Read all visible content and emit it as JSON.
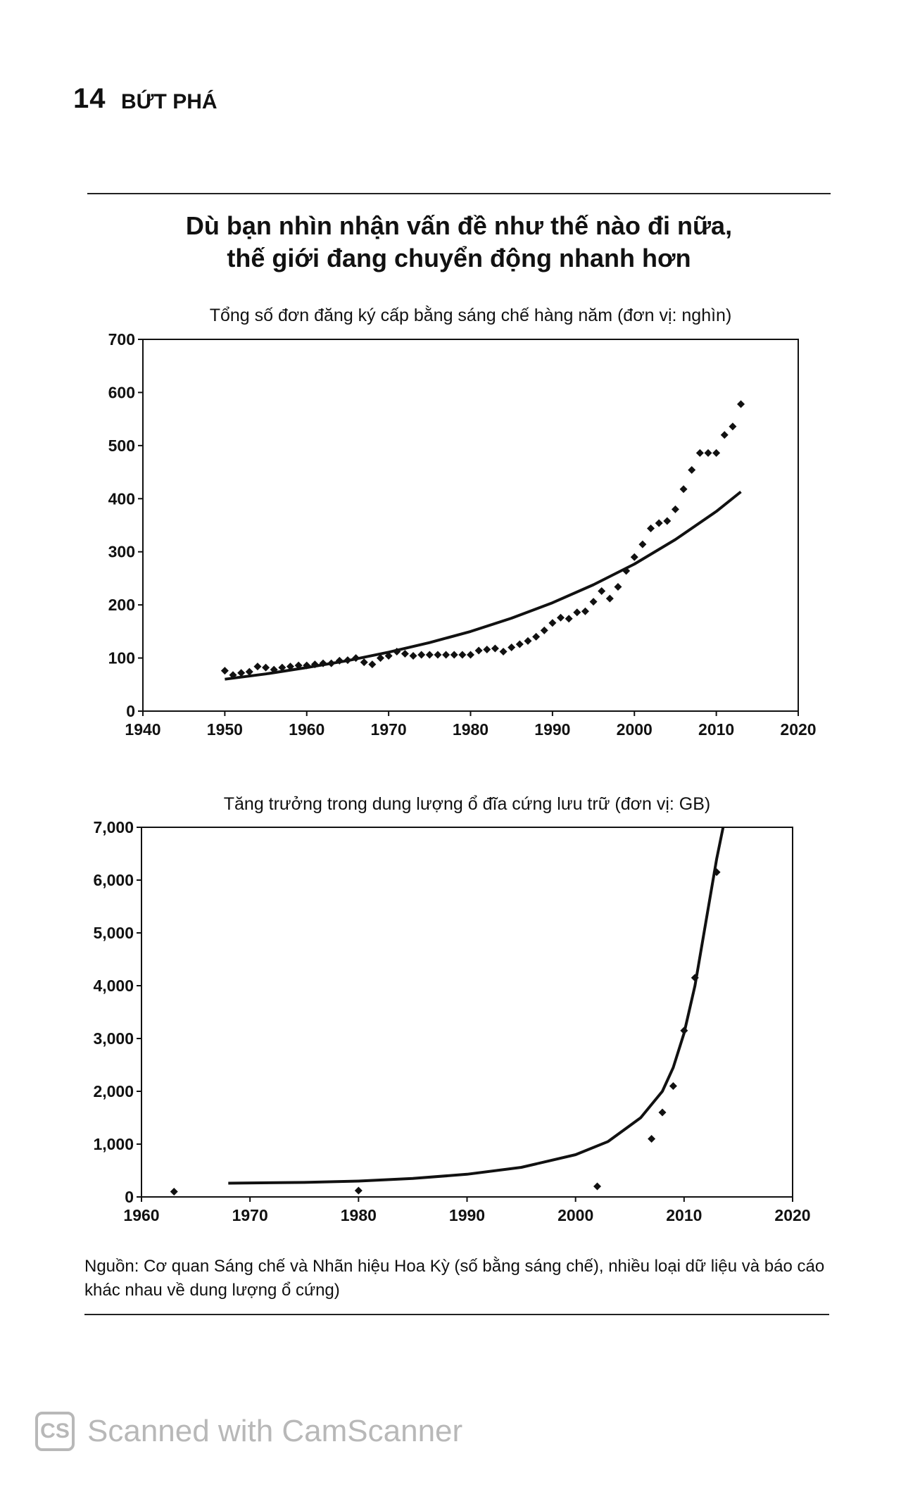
{
  "header": {
    "page_number": "14",
    "book_title": "BỨT PHÁ"
  },
  "figure": {
    "title_line1": "Dù bạn nhìn nhận vấn đề như thế nào đi nữa,",
    "title_line2": "thế giới đang chuyển động nhanh hơn"
  },
  "chart_data": [
    {
      "type": "scatter",
      "title": "Tổng số đơn đăng ký cấp bằng sáng chế hàng năm (đơn vị: nghìn)",
      "xlabel": "",
      "ylabel": "",
      "xlim": [
        1940,
        2020
      ],
      "ylim": [
        0,
        700
      ],
      "xticks": [
        1940,
        1950,
        1960,
        1970,
        1980,
        1990,
        2000,
        2010,
        2020
      ],
      "yticks": [
        0,
        100,
        200,
        300,
        400,
        500,
        600,
        700
      ],
      "ytick_labels": [
        "0",
        "100",
        "200",
        "300",
        "400",
        "500",
        "600",
        "700"
      ],
      "grid": false,
      "points": [
        [
          1950,
          76
        ],
        [
          1951,
          68
        ],
        [
          1952,
          72
        ],
        [
          1953,
          74
        ],
        [
          1954,
          84
        ],
        [
          1955,
          82
        ],
        [
          1956,
          78
        ],
        [
          1957,
          82
        ],
        [
          1958,
          84
        ],
        [
          1959,
          86
        ],
        [
          1960,
          86
        ],
        [
          1961,
          88
        ],
        [
          1962,
          90
        ],
        [
          1963,
          90
        ],
        [
          1964,
          95
        ],
        [
          1965,
          96
        ],
        [
          1966,
          100
        ],
        [
          1967,
          92
        ],
        [
          1968,
          88
        ],
        [
          1969,
          100
        ],
        [
          1970,
          104
        ],
        [
          1971,
          112
        ],
        [
          1972,
          108
        ],
        [
          1973,
          104
        ],
        [
          1974,
          106
        ],
        [
          1975,
          106
        ],
        [
          1976,
          106
        ],
        [
          1977,
          106
        ],
        [
          1978,
          106
        ],
        [
          1979,
          106
        ],
        [
          1980,
          106
        ],
        [
          1981,
          114
        ],
        [
          1982,
          116
        ],
        [
          1983,
          118
        ],
        [
          1984,
          112
        ],
        [
          1985,
          120
        ],
        [
          1986,
          126
        ],
        [
          1987,
          132
        ],
        [
          1988,
          140
        ],
        [
          1989,
          152
        ],
        [
          1990,
          166
        ],
        [
          1991,
          176
        ],
        [
          1992,
          174
        ],
        [
          1993,
          186
        ],
        [
          1994,
          188
        ],
        [
          1995,
          206
        ],
        [
          1996,
          226
        ],
        [
          1997,
          212
        ],
        [
          1998,
          234
        ],
        [
          1999,
          264
        ],
        [
          2000,
          290
        ],
        [
          2001,
          314
        ],
        [
          2002,
          344
        ],
        [
          2003,
          354
        ],
        [
          2004,
          358
        ],
        [
          2005,
          380
        ],
        [
          2006,
          418
        ],
        [
          2007,
          454
        ],
        [
          2008,
          486
        ],
        [
          2009,
          486
        ],
        [
          2010,
          486
        ],
        [
          2011,
          520
        ],
        [
          2012,
          536
        ],
        [
          2013,
          578
        ]
      ],
      "trend": [
        [
          1950,
          60
        ],
        [
          1955,
          70
        ],
        [
          1960,
          82
        ],
        [
          1965,
          95
        ],
        [
          1970,
          111
        ],
        [
          1975,
          129
        ],
        [
          1980,
          150
        ],
        [
          1985,
          175
        ],
        [
          1990,
          204
        ],
        [
          1995,
          238
        ],
        [
          2000,
          277
        ],
        [
          2005,
          323
        ],
        [
          2010,
          376
        ],
        [
          2013,
          413
        ]
      ]
    },
    {
      "type": "scatter",
      "title": "Tăng trưởng trong dung lượng ổ đĩa cứng lưu trữ (đơn vị: GB)",
      "xlabel": "",
      "ylabel": "",
      "xlim": [
        1960,
        2020
      ],
      "ylim": [
        0,
        7000
      ],
      "xticks": [
        1960,
        1970,
        1980,
        1990,
        2000,
        2010,
        2020
      ],
      "yticks": [
        0,
        1000,
        2000,
        3000,
        4000,
        5000,
        6000,
        7000
      ],
      "ytick_labels": [
        "0",
        "1,000",
        "2,000",
        "3,000",
        "4,000",
        "5,000",
        "6,000",
        "7,000"
      ],
      "grid": false,
      "points": [
        [
          1963,
          100
        ],
        [
          1980,
          120
        ],
        [
          2002,
          200
        ],
        [
          2007,
          1100
        ],
        [
          2008,
          1600
        ],
        [
          2009,
          2100
        ],
        [
          2010,
          3150
        ],
        [
          2011,
          4150
        ],
        [
          2013,
          6150
        ]
      ],
      "trend": [
        [
          1968,
          260
        ],
        [
          1975,
          275
        ],
        [
          1980,
          300
        ],
        [
          1985,
          350
        ],
        [
          1990,
          430
        ],
        [
          1995,
          560
        ],
        [
          2000,
          800
        ],
        [
          2003,
          1050
        ],
        [
          2006,
          1500
        ],
        [
          2008,
          2000
        ],
        [
          2009,
          2450
        ],
        [
          2010,
          3100
        ],
        [
          2011,
          4000
        ],
        [
          2012,
          5200
        ],
        [
          2013,
          6400
        ],
        [
          2013.6,
          7000
        ]
      ]
    }
  ],
  "source_note": "Nguồn: Cơ quan Sáng chế và Nhãn hiệu Hoa Kỳ (số bằng sáng chế), nhiều loại dữ liệu và báo cáo khác nhau về dung lượng ổ cứng)",
  "watermark": {
    "logo": "CS",
    "text": "Scanned with CamScanner"
  }
}
